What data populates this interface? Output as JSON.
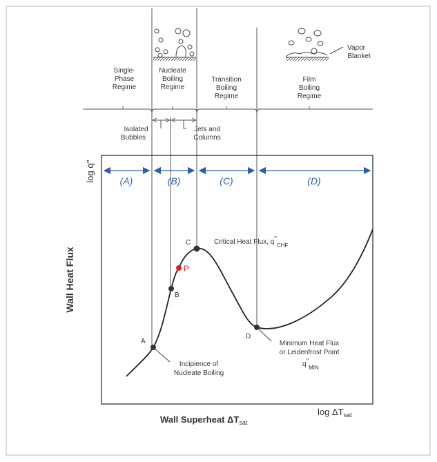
{
  "regimes": [
    {
      "lines": [
        "Single-",
        "Phase",
        "Regime"
      ]
    },
    {
      "lines": [
        "Nucleate",
        "Boiling",
        "Regime"
      ]
    },
    {
      "lines": [
        "Transition",
        "Boiling",
        "Regime"
      ]
    },
    {
      "lines": [
        "Film",
        "Boiling",
        "Regime"
      ]
    }
  ],
  "vapor_blanket": [
    "Vapor",
    "Blanket"
  ],
  "sub_regimes": [
    [
      "Isolated",
      "Bubbles"
    ],
    [
      "Jets and",
      "Columns"
    ]
  ],
  "regions": [
    "(A)",
    "(B)",
    "(C)",
    "(D)"
  ],
  "y_axis": {
    "title": "Wall Heat Flux",
    "label": "log q''"
  },
  "x_axis": {
    "title": "Wall Superheat ΔT",
    "title_sub": "sat",
    "label": "log ΔT",
    "label_sub": "sat"
  },
  "points": [
    "A",
    "B",
    "P",
    "C",
    "D"
  ],
  "annotations": {
    "chf": {
      "text": "Critical Heat Flux, q",
      "sup": "\"",
      "sub": "CHF"
    },
    "min": {
      "lines": [
        "Minimum Heat Flux",
        "or Leidenfrost Point"
      ],
      "text": "q",
      "sup": "\"",
      "sub": "MIN"
    },
    "onb": [
      "Incipience of",
      "Nucleate Boiling"
    ]
  }
}
